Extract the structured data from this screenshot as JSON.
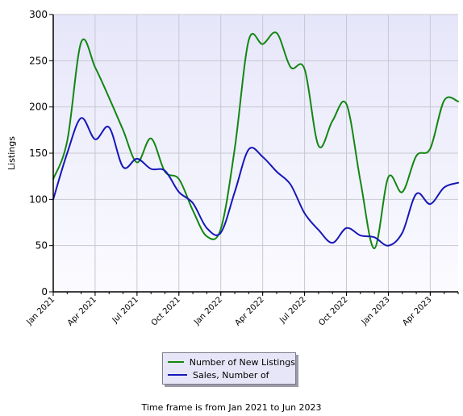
{
  "chart_data": {
    "type": "line",
    "title": "",
    "xlabel": "",
    "ylabel": "Listings",
    "ylim": [
      0,
      300
    ],
    "yticks": [
      "0",
      "50",
      "100",
      "150",
      "200",
      "250",
      "300"
    ],
    "x_tick_labels": [
      "Jan 2021",
      "Apr 2021",
      "Jul 2021",
      "Oct 2021",
      "Jan 2022",
      "Apr 2022",
      "Jul 2022",
      "Oct 2022",
      "Jan 2023",
      "Apr 2023"
    ],
    "x": [
      "Jan 2021",
      "Feb 2021",
      "Mar 2021",
      "Apr 2021",
      "May 2021",
      "Jun 2021",
      "Jul 2021",
      "Aug 2021",
      "Sep 2021",
      "Oct 2021",
      "Nov 2021",
      "Dec 2021",
      "Jan 2022",
      "Feb 2022",
      "Mar 2022",
      "Apr 2022",
      "May 2022",
      "Jun 2022",
      "Jul 2022",
      "Aug 2022",
      "Sep 2022",
      "Oct 2022",
      "Nov 2022",
      "Dec 2022",
      "Jan 2023",
      "Feb 2023",
      "Mar 2023",
      "Apr 2023",
      "May 2023",
      "Jun 2023"
    ],
    "series": [
      {
        "name": "Number of New Listings",
        "color": "#138613",
        "values": [
          122,
          163,
          270,
          243,
          210,
          175,
          140,
          166,
          130,
          122,
          88,
          60,
          68,
          155,
          272,
          268,
          280,
          243,
          241,
          158,
          185,
          203,
          120,
          47,
          124,
          108,
          147,
          155,
          207,
          206
        ]
      },
      {
        "name": "Sales, Number of",
        "color": "#1717b8",
        "values": [
          100,
          150,
          188,
          165,
          178,
          135,
          144,
          133,
          131,
          108,
          96,
          69,
          64,
          108,
          154,
          146,
          130,
          116,
          85,
          67,
          53,
          69,
          61,
          59,
          50,
          64,
          106,
          95,
          113,
          118
        ]
      }
    ],
    "grid": true,
    "legend_position": "bottom",
    "colors": {
      "plot_background": "#ececfb",
      "grid": "#c8c8d2"
    }
  },
  "footer": "Time frame is from Jan 2021 to Jun 2023"
}
